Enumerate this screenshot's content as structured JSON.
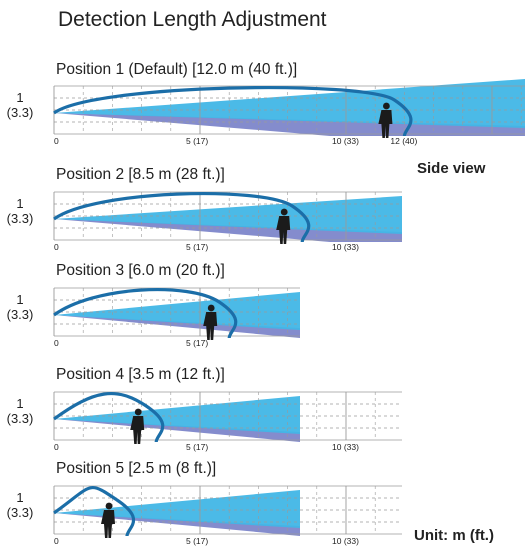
{
  "title": "Detection Length Adjustment",
  "side_view_label": "Side view",
  "unit_label": "Unit: m (ft.)",
  "y_label": {
    "line1": "1",
    "line2": "(3.3)"
  },
  "x_ticks": [
    {
      "value": 0,
      "label": "0"
    },
    {
      "value": 5,
      "label": "5 (17)"
    },
    {
      "value": 10,
      "label": "10 (33)"
    },
    {
      "value": 12,
      "label": "12 (40)"
    }
  ],
  "colors": {
    "beam_light": "#41b6e6",
    "beam_ground": "#6f78c4",
    "arc": "#1b6ea8",
    "grid": "#9a9a9a",
    "person": "#1b1b1b"
  },
  "positions": [
    {
      "label": "Position 1 (Default) [12.0 m (40 ft.)]",
      "length_m": 12.0
    },
    {
      "label": "Position 2 [8.5 m (28 ft.)]",
      "length_m": 8.5
    },
    {
      "label": "Position 3 [6.0 m (20 ft.)]",
      "length_m": 6.0
    },
    {
      "label": "Position 4 [3.5 m (12 ft.)]",
      "length_m": 3.5
    },
    {
      "label": "Position 5 [2.5 m (8 ft.)]",
      "length_m": 2.5
    }
  ]
}
